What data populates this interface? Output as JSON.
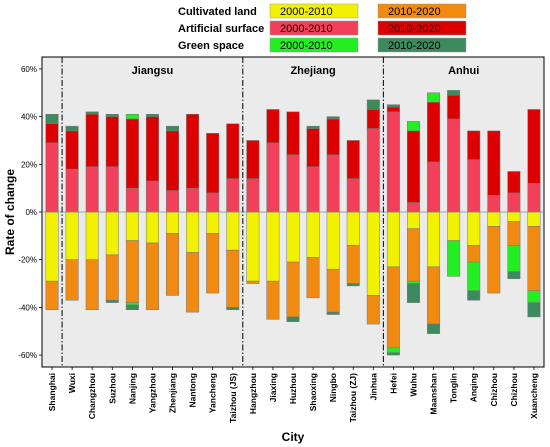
{
  "chart_data": {
    "type": "bar",
    "stacked": true,
    "xlabel": "City",
    "ylabel": "Rate of change",
    "ylim": [
      -0.65,
      0.65
    ],
    "yticks": [
      -0.6,
      -0.4,
      -0.2,
      0,
      0.2,
      0.4,
      0.6
    ],
    "ytick_labels": [
      "-60%",
      "-40%",
      "-20%",
      "0%",
      "20%",
      "40%",
      "60%"
    ],
    "grid": false,
    "legend_position": "top-right",
    "legend": {
      "groups": [
        {
          "label": "Cultivated land",
          "entries": [
            {
              "label": "2000-2010",
              "color": "#f2f200"
            },
            {
              "label": "2010-2020",
              "color": "#f08a10"
            }
          ]
        },
        {
          "label": "Artificial surface",
          "entries": [
            {
              "label": "2000-2010",
              "color": "#f2405a"
            },
            {
              "label": "2010-2020",
              "color": "#dd0000"
            }
          ]
        },
        {
          "label": "Green space",
          "entries": [
            {
              "label": "2000-2010",
              "color": "#22ee22"
            },
            {
              "label": "2010-2020",
              "color": "#3d8a5e"
            }
          ]
        }
      ]
    },
    "regions": [
      "Jiangsu",
      "Zhejiang",
      "Anhui"
    ],
    "categories": [
      "Shanghai",
      "Wuxi",
      "Changzhou",
      "Suzhou",
      "Nanjing",
      "Yangzhou",
      "Zhenjiang",
      "Nantong",
      "Yancheng",
      "Taizhou (JS)",
      "Hangzhou",
      "Jiaxing",
      "Huzhou",
      "Shaoxing",
      "Ningbo",
      "Taizhou (ZJ)",
      "Jinhua",
      "Hefei",
      "Wuhu",
      "Maanshan",
      "Tonglin",
      "Anqing",
      "Chizhou",
      "Chizhou",
      "Xuancheng"
    ],
    "colors": {
      "cult_2000_2010": "#f2f200",
      "cult_2010_2020": "#f08a10",
      "art_2000_2010": "#f2405a",
      "art_2010_2020": "#dd0000",
      "green_2000_2010": "#22ee22",
      "green_2010_2020": "#3d8a5e"
    },
    "series": [
      {
        "name": "Artificial surface 2000-2010",
        "color_key": "art_2000_2010",
        "values": [
          0.29,
          0.18,
          0.19,
          0.19,
          0.1,
          0.13,
          0.09,
          0.1,
          0.08,
          0.14,
          0.14,
          0.29,
          0.24,
          0.19,
          0.24,
          0.14,
          0.35,
          0.42,
          0.04,
          0.21,
          0.39,
          0.22,
          0.07,
          0.08,
          0.12
        ]
      },
      {
        "name": "Artificial surface 2010-2020",
        "color_key": "art_2010_2020",
        "values": [
          0.08,
          0.16,
          0.22,
          0.21,
          0.29,
          0.27,
          0.25,
          0.31,
          0.25,
          0.23,
          0.16,
          0.14,
          0.18,
          0.16,
          0.15,
          0.16,
          0.08,
          0.02,
          0.3,
          0.25,
          0.1,
          0.12,
          0.27,
          0.09,
          0.31
        ]
      },
      {
        "name": "Green space 2000-2010",
        "color_key": "green_2000_2010",
        "values": [
          0,
          0,
          0,
          0,
          0.02,
          0,
          0,
          0,
          0,
          0,
          0,
          0,
          0,
          0,
          0,
          0,
          0,
          0,
          0.04,
          0.04,
          0,
          0,
          0,
          0,
          0
        ]
      },
      {
        "name": "Green space 2010-2020",
        "color_key": "green_2010_2020",
        "values": [
          0.04,
          0.02,
          0.01,
          0.01,
          0,
          0.01,
          0.02,
          0,
          0,
          0,
          0,
          0,
          0,
          0.01,
          0.01,
          0,
          0.04,
          0.01,
          0,
          0,
          0.02,
          0,
          0,
          0,
          0
        ]
      },
      {
        "name": "Cultivated land 2000-2010",
        "color_key": "cult_2000_2010",
        "values": [
          -0.29,
          -0.2,
          -0.2,
          -0.18,
          -0.12,
          -0.13,
          -0.09,
          -0.17,
          -0.09,
          -0.16,
          -0.29,
          -0.29,
          -0.21,
          -0.19,
          -0.24,
          -0.14,
          -0.35,
          -0.23,
          -0.07,
          -0.23,
          -0.12,
          -0.14,
          -0.06,
          -0.04,
          -0.06
        ]
      },
      {
        "name": "Cultivated land 2010-2020",
        "color_key": "cult_2010_2020",
        "values": [
          -0.12,
          -0.17,
          -0.21,
          -0.19,
          -0.26,
          -0.28,
          -0.26,
          -0.25,
          -0.25,
          -0.24,
          -0.01,
          -0.16,
          -0.23,
          -0.17,
          -0.18,
          -0.16,
          -0.12,
          -0.34,
          -0.22,
          -0.24,
          0,
          -0.07,
          -0.28,
          -0.1,
          -0.27
        ]
      },
      {
        "name": "Green space 2000-2010 (loss)",
        "color_key": "green_2000_2010",
        "values": [
          0,
          0,
          0,
          0,
          -0.01,
          0,
          0,
          0,
          0,
          0,
          0,
          0,
          0,
          0,
          0,
          0,
          0,
          -0.02,
          -0.01,
          0,
          -0.15,
          -0.12,
          0,
          -0.11,
          -0.05
        ]
      },
      {
        "name": "Green space 2010-2020 (loss)",
        "color_key": "green_2010_2020",
        "values": [
          0,
          0,
          0,
          -0.01,
          -0.02,
          0,
          0,
          0,
          0,
          -0.01,
          0,
          0,
          -0.02,
          0,
          -0.01,
          -0.01,
          0,
          -0.01,
          -0.08,
          -0.04,
          0,
          -0.04,
          0,
          -0.03,
          -0.06
        ]
      }
    ]
  }
}
